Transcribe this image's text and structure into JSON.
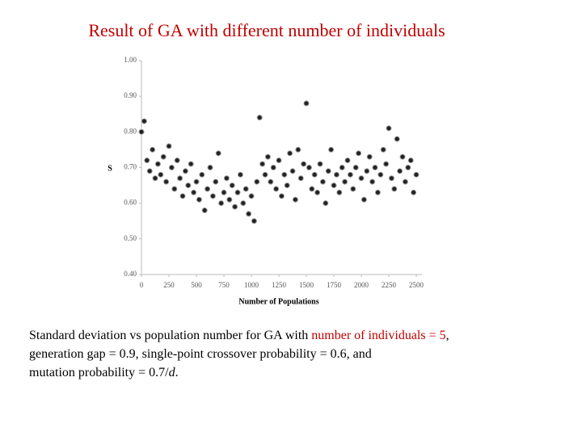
{
  "title": "Result of GA with different number of individuals",
  "chart_data": {
    "type": "scatter",
    "xlabel": "Number of Populations",
    "ylabel": "S",
    "x": [
      0,
      25,
      50,
      75,
      100,
      125,
      150,
      175,
      200,
      225,
      250,
      275,
      300,
      325,
      350,
      375,
      400,
      425,
      450,
      475,
      500,
      525,
      550,
      575,
      600,
      625,
      650,
      675,
      700,
      725,
      750,
      775,
      800,
      825,
      850,
      875,
      900,
      925,
      950,
      975,
      1000,
      1025,
      1050,
      1075,
      1100,
      1125,
      1150,
      1175,
      1200,
      1225,
      1250,
      1275,
      1300,
      1325,
      1350,
      1375,
      1400,
      1425,
      1450,
      1475,
      1500,
      1525,
      1550,
      1575,
      1600,
      1625,
      1650,
      1675,
      1700,
      1725,
      1750,
      1775,
      1800,
      1825,
      1850,
      1875,
      1900,
      1925,
      1950,
      1975,
      2000,
      2025,
      2050,
      2075,
      2100,
      2125,
      2150,
      2175,
      2200,
      2225,
      2250,
      2275,
      2300,
      2325,
      2350,
      2375,
      2400,
      2425,
      2450,
      2475,
      2500
    ],
    "series": [
      {
        "color": "#222222",
        "values": [
          0.8,
          0.83,
          0.72,
          0.69,
          0.75,
          0.67,
          0.71,
          0.68,
          0.73,
          0.66,
          0.76,
          0.7,
          0.64,
          0.72,
          0.67,
          0.62,
          0.69,
          0.65,
          0.71,
          0.63,
          0.66,
          0.61,
          0.68,
          0.58,
          0.64,
          0.7,
          0.62,
          0.66,
          0.74,
          0.6,
          0.63,
          0.67,
          0.61,
          0.65,
          0.59,
          0.63,
          0.68,
          0.6,
          0.64,
          0.57,
          0.62,
          0.55,
          0.66,
          0.84,
          0.71,
          0.68,
          0.73,
          0.66,
          0.7,
          0.64,
          0.72,
          0.62,
          0.68,
          0.65,
          0.74,
          0.69,
          0.61,
          0.75,
          0.67,
          0.71,
          0.88,
          0.7,
          0.64,
          0.68,
          0.63,
          0.71,
          0.66,
          0.6,
          0.69,
          0.75,
          0.65,
          0.68,
          0.63,
          0.7,
          0.66,
          0.72,
          0.68,
          0.64,
          0.7,
          0.74,
          0.67,
          0.61,
          0.69,
          0.73,
          0.66,
          0.7,
          0.63,
          0.68,
          0.75,
          0.71,
          0.81,
          0.67,
          0.64,
          0.78,
          0.69,
          0.73,
          0.66,
          0.7,
          0.72,
          0.63,
          0.68
        ]
      }
    ],
    "xlim": [
      0,
      2500
    ],
    "xticks": [
      0,
      250,
      500,
      750,
      1000,
      1250,
      1500,
      1750,
      2000,
      2250,
      2500
    ],
    "ylim": [
      0.4,
      1.0
    ],
    "yticks": [
      {
        "value": 0.4,
        "label": "0.40"
      },
      {
        "value": 0.5,
        "label": "0.50"
      },
      {
        "value": 0.6,
        "label": "0.60"
      },
      {
        "value": 0.7,
        "label": "0.70"
      },
      {
        "value": 0.8,
        "label": "0.80"
      },
      {
        "value": 0.9,
        "label": "0.90"
      },
      {
        "value": 1.0,
        "label": "1.00"
      }
    ]
  },
  "caption": {
    "line1": "Standard deviation vs population number for GA with ",
    "line1_red": "number of individuals = 5",
    "line1_end": ",",
    "line2": "generation gap = 0.9, single-point crossover probability = 0.6, and",
    "line3": "mutation probability = 0.7/",
    "line3_italic": "d",
    "line3_end": "."
  }
}
